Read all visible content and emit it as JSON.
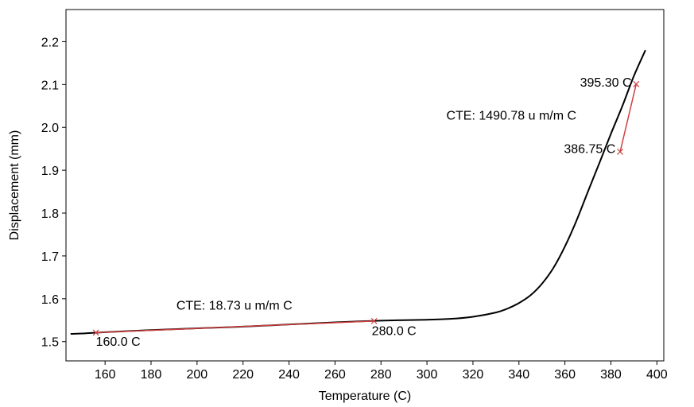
{
  "chart_data": {
    "type": "line",
    "title": "",
    "xlabel": "Temperature (C)",
    "ylabel": "Displacement (mm)",
    "xlim": [
      143,
      403
    ],
    "ylim": [
      1.455,
      2.275
    ],
    "x_ticks": [
      160,
      180,
      200,
      220,
      240,
      260,
      280,
      300,
      320,
      340,
      360,
      380,
      400
    ],
    "y_ticks": [
      1.5,
      1.6,
      1.7,
      1.8,
      1.9,
      2.0,
      2.1,
      2.2
    ],
    "x_tick_labels": [
      "160",
      "180",
      "200",
      "220",
      "240",
      "260",
      "280",
      "300",
      "320",
      "340",
      "360",
      "380",
      "400"
    ],
    "y_tick_labels": [
      "1.5",
      "1.6",
      "1.7",
      "1.8",
      "1.9",
      "2.0",
      "2.1",
      "2.2"
    ],
    "grid": false,
    "legend": "none",
    "series": [
      {
        "color": "#000000",
        "x": [
          145,
          150,
          160,
          180,
          200,
          220,
          240,
          260,
          280,
          300,
          310,
          320,
          330,
          335,
          340,
          345,
          350,
          355,
          360,
          365,
          370,
          375,
          380,
          385,
          390,
          395
        ],
        "y": [
          1.518,
          1.519,
          1.522,
          1.527,
          1.531,
          1.535,
          1.54,
          1.545,
          1.549,
          1.551,
          1.553,
          1.558,
          1.568,
          1.577,
          1.59,
          1.608,
          1.635,
          1.672,
          1.722,
          1.782,
          1.85,
          1.917,
          1.985,
          2.05,
          2.12,
          2.18
        ]
      }
    ],
    "fit_lines": [
      {
        "color": "#d04040",
        "x": [
          156,
          277
        ],
        "y": [
          1.521,
          1.548
        ]
      },
      {
        "color": "#d04040",
        "x": [
          384,
          391
        ],
        "y": [
          1.943,
          2.101
        ]
      }
    ],
    "markers": [
      {
        "x": 156,
        "y": 1.521,
        "color": "#d04040"
      },
      {
        "x": 277,
        "y": 1.548,
        "color": "#d04040"
      },
      {
        "x": 384,
        "y": 1.943,
        "color": "#d04040"
      },
      {
        "x": 391,
        "y": 2.101,
        "color": "#d04040"
      }
    ],
    "annotations": [
      {
        "text": "CTE: 18.73 u m/m C",
        "x": 191,
        "y": 1.575,
        "anchor": "start"
      },
      {
        "text": "160.0 C",
        "x": 156,
        "y": 1.49,
        "anchor": "start"
      },
      {
        "text": "280.0 C",
        "x": 276,
        "y": 1.515,
        "anchor": "start"
      },
      {
        "text": "CTE: 1490.78 u m/m C",
        "x": 365,
        "y": 2.018,
        "anchor": "end"
      },
      {
        "text": "386.75 C",
        "x": 382,
        "y": 1.94,
        "anchor": "end"
      },
      {
        "text": "395.30 C",
        "x": 389,
        "y": 2.095,
        "anchor": "end"
      }
    ]
  }
}
